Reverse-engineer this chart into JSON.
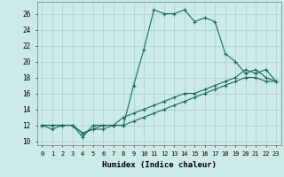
{
  "xlabel": "Humidex (Indice chaleur)",
  "xlim": [
    -0.5,
    23.5
  ],
  "ylim": [
    9.5,
    27.5
  ],
  "xticks": [
    0,
    1,
    2,
    3,
    4,
    5,
    6,
    7,
    8,
    9,
    10,
    11,
    12,
    13,
    14,
    15,
    16,
    17,
    18,
    19,
    20,
    21,
    22,
    23
  ],
  "yticks": [
    10,
    12,
    14,
    16,
    18,
    20,
    22,
    24,
    26
  ],
  "bg_color": "#cceae7",
  "grid_color": "#afd4d0",
  "line_color": "#1a6b5e",
  "lines": [
    {
      "x": [
        0,
        1,
        2,
        3,
        4,
        5,
        6,
        7,
        8,
        9,
        10,
        11,
        12,
        13,
        14,
        15,
        16,
        17,
        18,
        19,
        20,
        21,
        22,
        23
      ],
      "y": [
        12,
        11.5,
        12,
        12,
        10.5,
        12,
        12,
        12,
        12,
        17,
        21.5,
        26.5,
        26,
        26,
        26.5,
        25,
        25.5,
        25,
        21,
        20,
        18.5,
        19,
        18,
        17.5
      ]
    },
    {
      "x": [
        0,
        1,
        2,
        3,
        4,
        5,
        6,
        7,
        8,
        9,
        10,
        11,
        12,
        13,
        14,
        15,
        16,
        17,
        18,
        19,
        20,
        21,
        22,
        23
      ],
      "y": [
        12,
        12,
        12,
        12,
        11,
        11.5,
        12,
        12,
        13,
        13.5,
        14,
        14.5,
        15,
        15.5,
        16,
        16,
        16.5,
        17,
        17.5,
        18,
        19,
        18.5,
        19,
        17.5
      ]
    },
    {
      "x": [
        0,
        1,
        2,
        3,
        4,
        5,
        6,
        7,
        8,
        9,
        10,
        11,
        12,
        13,
        14,
        15,
        16,
        17,
        18,
        19,
        20,
        21,
        22,
        23
      ],
      "y": [
        12,
        12,
        12,
        12,
        11,
        11.5,
        11.5,
        12,
        12,
        12.5,
        13,
        13.5,
        14,
        14.5,
        15,
        15.5,
        16,
        16.5,
        17,
        17.5,
        18,
        18,
        17.5,
        17.5
      ]
    }
  ]
}
